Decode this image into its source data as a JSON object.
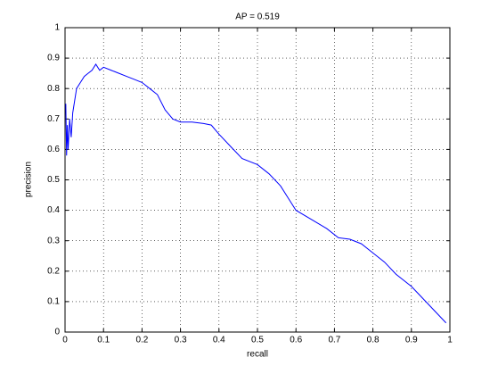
{
  "chart_data": {
    "type": "line",
    "title": "AP = 0.519",
    "x_label": "recall",
    "y_label": "precision",
    "x": [
      0.002,
      0.004,
      0.006,
      0.008,
      0.012,
      0.016,
      0.02,
      0.025,
      0.03,
      0.04,
      0.05,
      0.06,
      0.07,
      0.08,
      0.09,
      0.1,
      0.12,
      0.14,
      0.16,
      0.18,
      0.2,
      0.22,
      0.24,
      0.26,
      0.28,
      0.3,
      0.33,
      0.36,
      0.38,
      0.4,
      0.43,
      0.46,
      0.5,
      0.53,
      0.56,
      0.58,
      0.6,
      0.64,
      0.68,
      0.71,
      0.74,
      0.77,
      0.8,
      0.83,
      0.86,
      0.9,
      0.93,
      0.96,
      0.99
    ],
    "values": [
      0.75,
      0.58,
      0.68,
      0.6,
      0.7,
      0.64,
      0.72,
      0.76,
      0.8,
      0.82,
      0.84,
      0.85,
      0.86,
      0.88,
      0.86,
      0.87,
      0.86,
      0.85,
      0.84,
      0.83,
      0.82,
      0.8,
      0.78,
      0.73,
      0.7,
      0.69,
      0.69,
      0.685,
      0.68,
      0.65,
      0.61,
      0.57,
      0.55,
      0.52,
      0.48,
      0.44,
      0.4,
      0.37,
      0.34,
      0.31,
      0.305,
      0.29,
      0.26,
      0.23,
      0.19,
      0.15,
      0.11,
      0.07,
      0.03
    ],
    "color": "#0000ff",
    "xlim": [
      0,
      1
    ],
    "ylim": [
      0,
      1
    ],
    "xticks": [
      0,
      0.1,
      0.2,
      0.3,
      0.4,
      0.5,
      0.6,
      0.7,
      0.8,
      0.9,
      1
    ],
    "yticks": [
      0,
      0.1,
      0.2,
      0.3,
      0.4,
      0.5,
      0.6,
      0.7,
      0.8,
      0.9,
      1
    ],
    "grid": true
  }
}
